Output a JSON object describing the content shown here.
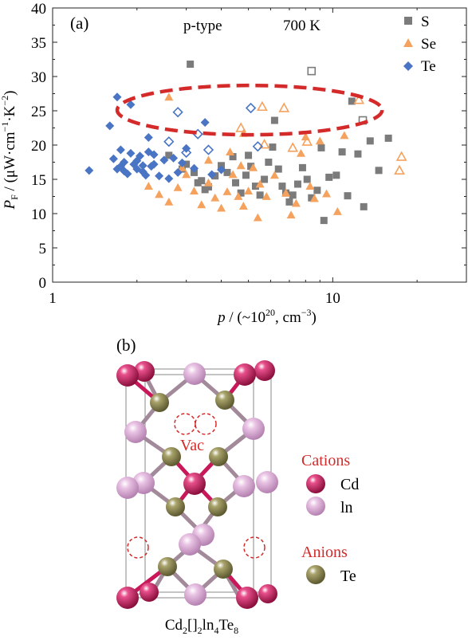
{
  "chart_data": {
    "type": "scatter",
    "panel_label": "(a)",
    "annotations": [
      "p-type",
      "700 K"
    ],
    "xscale": "log",
    "xlim": [
      1,
      30
    ],
    "ylim": [
      0,
      40
    ],
    "x_tick_labels": [
      "1",
      "10"
    ],
    "y_tick_labels": [
      "0",
      "5",
      "10",
      "15",
      "20",
      "25",
      "30",
      "35",
      "40"
    ],
    "legend_position": "top-right",
    "highlight_ellipse": {
      "center": [
        6.3,
        25
      ],
      "x_span": [
        1.7,
        15.0
      ],
      "y_span": [
        21.5,
        28.7
      ],
      "color": "#d42a2a"
    },
    "series": [
      {
        "name": "S",
        "color": "#7b7b7b",
        "marker": "square",
        "points": [
          [
            3.1,
            31.8
          ],
          [
            2.6,
            18.5
          ],
          [
            3.0,
            17.2
          ],
          [
            3.2,
            16.0
          ],
          [
            3.4,
            14.8
          ],
          [
            3.6,
            13.9
          ],
          [
            3.8,
            15.5
          ],
          [
            4.0,
            17.0
          ],
          [
            4.2,
            16.0
          ],
          [
            4.5,
            14.5
          ],
          [
            4.7,
            13.0
          ],
          [
            4.9,
            15.6
          ],
          [
            5.1,
            16.9
          ],
          [
            5.3,
            14.0
          ],
          [
            5.5,
            12.7
          ],
          [
            5.7,
            15.0
          ],
          [
            5.9,
            17.5
          ],
          [
            6.1,
            19.7
          ],
          [
            6.4,
            16.5
          ],
          [
            6.6,
            14.0
          ],
          [
            6.8,
            13.0
          ],
          [
            7.0,
            11.7
          ],
          [
            7.2,
            12.7
          ],
          [
            7.5,
            14.3
          ],
          [
            7.8,
            16.7
          ],
          [
            8.1,
            15.0
          ],
          [
            8.4,
            12.3
          ],
          [
            8.8,
            13.4
          ],
          [
            9.3,
            9.0
          ],
          [
            9.7,
            15.3
          ],
          [
            10.3,
            15.6
          ],
          [
            10.8,
            19.0
          ],
          [
            11.3,
            12.6
          ],
          [
            11.7,
            26.4
          ],
          [
            12.3,
            18.7
          ],
          [
            12.9,
            11.0
          ],
          [
            13.6,
            20.6
          ],
          [
            14.6,
            16.3
          ],
          [
            15.8,
            21.0
          ],
          [
            3.3,
            14.5
          ],
          [
            4.4,
            18.3
          ],
          [
            6.2,
            23.6
          ],
          [
            9.1,
            19.6
          ],
          [
            2.9,
            16.5
          ],
          [
            3.5,
            13.5
          ],
          [
            5.0,
            18.5
          ]
        ]
      },
      {
        "name": "S",
        "color": "#7b7b7b",
        "marker": "square-open",
        "points": [
          [
            8.4,
            30.8
          ],
          [
            12.8,
            23.6
          ]
        ]
      },
      {
        "name": "Se",
        "color": "#f5a25e",
        "marker": "triangle",
        "points": [
          [
            2.6,
            27.0
          ],
          [
            2.2,
            14.0
          ],
          [
            2.4,
            12.8
          ],
          [
            2.6,
            11.7
          ],
          [
            2.8,
            13.8
          ],
          [
            3.0,
            15.7
          ],
          [
            3.2,
            13.3
          ],
          [
            3.4,
            11.3
          ],
          [
            3.6,
            14.5
          ],
          [
            3.8,
            12.3
          ],
          [
            4.0,
            10.8
          ],
          [
            4.2,
            13.2
          ],
          [
            4.4,
            15.7
          ],
          [
            4.6,
            12.5
          ],
          [
            4.8,
            11.1
          ],
          [
            5.0,
            13.3
          ],
          [
            5.2,
            16.7
          ],
          [
            5.5,
            14.3
          ],
          [
            5.8,
            12.5
          ],
          [
            6.2,
            15.6
          ],
          [
            6.8,
            13.0
          ],
          [
            7.1,
            9.8
          ],
          [
            7.4,
            11.5
          ],
          [
            7.7,
            18.8
          ],
          [
            8.0,
            21.2
          ],
          [
            8.6,
            12.2
          ],
          [
            9.0,
            20.6
          ],
          [
            9.5,
            12.9
          ],
          [
            10.4,
            10.3
          ],
          [
            11.0,
            21.4
          ],
          [
            4.3,
            19.0
          ],
          [
            4.7,
            17.0
          ],
          [
            3.6,
            17.8
          ],
          [
            2.9,
            16.7
          ],
          [
            5.4,
            9.4
          ],
          [
            4.8,
            21.7
          ],
          [
            8.3,
            14.0
          ]
        ]
      },
      {
        "name": "Se",
        "color": "#f5a25e",
        "marker": "triangle-open",
        "points": [
          [
            4.7,
            22.5
          ],
          [
            5.6,
            25.6
          ],
          [
            6.7,
            25.4
          ],
          [
            7.2,
            19.6
          ],
          [
            8.1,
            20.5
          ],
          [
            12.4,
            26.6
          ],
          [
            5.7,
            20.1
          ],
          [
            17.6,
            18.3
          ],
          [
            17.3,
            16.3
          ]
        ]
      },
      {
        "name": "Te",
        "color": "#4a74c4",
        "marker": "diamond",
        "points": [
          [
            1.35,
            16.3
          ],
          [
            1.6,
            22.8
          ],
          [
            1.65,
            18.0
          ],
          [
            1.7,
            16.5
          ],
          [
            1.75,
            19.3
          ],
          [
            1.8,
            17.5
          ],
          [
            1.85,
            15.8
          ],
          [
            1.9,
            18.8
          ],
          [
            1.95,
            17.2
          ],
          [
            2.0,
            16.5
          ],
          [
            2.05,
            18.4
          ],
          [
            2.1,
            17.0
          ],
          [
            2.15,
            15.6
          ],
          [
            2.2,
            19.0
          ],
          [
            2.25,
            16.9
          ],
          [
            2.3,
            18.6
          ],
          [
            2.4,
            15.5
          ],
          [
            2.5,
            17.8
          ],
          [
            2.6,
            15.1
          ],
          [
            2.7,
            18.1
          ],
          [
            2.8,
            16.0
          ],
          [
            2.9,
            17.4
          ],
          [
            3.0,
            19.5
          ],
          [
            3.2,
            16.6
          ],
          [
            3.5,
            23.3
          ],
          [
            3.7,
            15.7
          ],
          [
            4.0,
            16.4
          ],
          [
            1.7,
            27.0
          ],
          [
            1.9,
            25.9
          ],
          [
            2.2,
            21.1
          ],
          [
            1.8,
            16.2
          ],
          [
            2.0,
            17.7
          ],
          [
            2.3,
            17.2
          ],
          [
            2.1,
            16.1
          ],
          [
            1.75,
            16.9
          ]
        ]
      },
      {
        "name": "Te",
        "color": "#4a74c4",
        "marker": "diamond-open",
        "points": [
          [
            2.8,
            24.8
          ],
          [
            3.3,
            21.6
          ],
          [
            3.0,
            18.9
          ],
          [
            2.6,
            20.5
          ],
          [
            3.6,
            19.3
          ],
          [
            5.1,
            25.4
          ],
          [
            5.4,
            19.8
          ]
        ]
      }
    ]
  },
  "structure": {
    "panel_label": "(b)",
    "vacancy_label": "Vac",
    "cations_heading": "Cations",
    "anions_heading": "Anions",
    "legend_items": [
      {
        "label": "Cd",
        "color": "#c8185a"
      },
      {
        "label": "ln",
        "color": "#dba7d4"
      },
      {
        "label": "Te",
        "color": "#8a8450"
      }
    ],
    "vacancy_color": "#d42a2a"
  }
}
